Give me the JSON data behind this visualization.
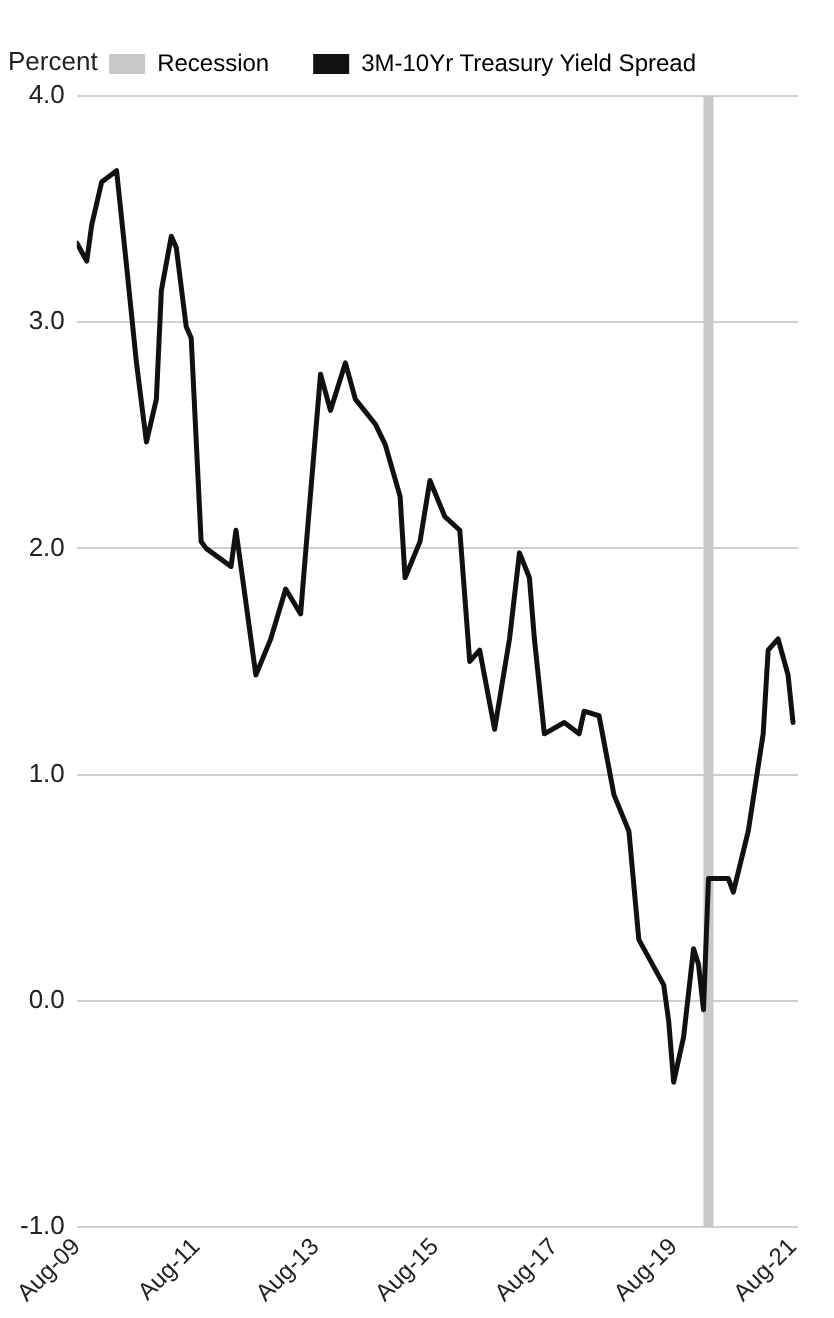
{
  "chart_data": {
    "type": "line",
    "ylabel": "Percent",
    "legend": "top",
    "grid": "y",
    "marker": "none",
    "line_style": "solid",
    "xlim": [
      "2009-08",
      "2021-09"
    ],
    "xticks": [
      {
        "value": "2009-08",
        "label": "Aug-09"
      },
      {
        "value": "2011-08",
        "label": "Aug-11"
      },
      {
        "value": "2013-08",
        "label": "Aug-13"
      },
      {
        "value": "2015-08",
        "label": "Aug-15"
      },
      {
        "value": "2017-08",
        "label": "Aug-17"
      },
      {
        "value": "2019-08",
        "label": "Aug-19"
      },
      {
        "value": "2021-08",
        "label": "Aug-21"
      }
    ],
    "ylim": [
      -1,
      4
    ],
    "yticks": [
      {
        "value": -1,
        "label": "-1.0"
      },
      {
        "value": 0,
        "label": "0.0"
      },
      {
        "value": 1,
        "label": "1.0"
      },
      {
        "value": 2,
        "label": "2.0"
      },
      {
        "value": 3,
        "label": "3.0"
      },
      {
        "value": 4,
        "label": "4.0"
      }
    ],
    "bands": [
      {
        "axis": "x",
        "from": "2020-02",
        "to": "2020-04",
        "label": "Recession",
        "color": "#c8c8c8"
      }
    ],
    "x": [
      "2009-08",
      "2009-10",
      "2009-11",
      "2010-01",
      "2010-04",
      "2010-06",
      "2010-08",
      "2010-10",
      "2010-12",
      "2011-01",
      "2011-03",
      "2011-04",
      "2011-06",
      "2011-07",
      "2011-09",
      "2011-10",
      "2012-03",
      "2012-04",
      "2012-07",
      "2012-08",
      "2012-11",
      "2013-02",
      "2013-05",
      "2013-06",
      "2013-09",
      "2013-11",
      "2014-02",
      "2014-04",
      "2014-08",
      "2014-10",
      "2015-01",
      "2015-02",
      "2015-05",
      "2015-07",
      "2015-10",
      "2016-01",
      "2016-03",
      "2016-05",
      "2016-08",
      "2016-11",
      "2017-01",
      "2017-03",
      "2017-04",
      "2017-06",
      "2017-10",
      "2018-01",
      "2018-02",
      "2018-05",
      "2018-08",
      "2018-11",
      "2019-01",
      "2019-06",
      "2019-07",
      "2019-08",
      "2019-10",
      "2019-12",
      "2020-01",
      "2020-02",
      "2020-03",
      "2020-07",
      "2020-08",
      "2020-11",
      "2021-02",
      "2021-03",
      "2021-05",
      "2021-07",
      "2021-08"
    ],
    "series": [
      {
        "name": "3M-10Yr Treasury Yield Spread",
        "color": "#111111",
        "values": [
          3.35,
          3.27,
          3.43,
          3.62,
          3.67,
          3.25,
          2.82,
          2.47,
          2.66,
          3.14,
          3.38,
          3.33,
          2.98,
          2.93,
          2.03,
          2.0,
          1.92,
          2.08,
          1.6,
          1.44,
          1.6,
          1.82,
          1.71,
          1.98,
          2.77,
          2.61,
          2.82,
          2.66,
          2.55,
          2.46,
          2.23,
          1.87,
          2.03,
          2.3,
          2.14,
          2.08,
          1.5,
          1.55,
          1.2,
          1.6,
          1.98,
          1.87,
          1.6,
          1.18,
          1.23,
          1.18,
          1.28,
          1.26,
          0.91,
          0.75,
          0.27,
          0.07,
          -0.09,
          -0.36,
          -0.16,
          0.23,
          0.16,
          -0.04,
          0.54,
          0.54,
          0.48,
          0.75,
          1.18,
          1.55,
          1.6,
          1.44,
          1.23
        ]
      }
    ]
  }
}
